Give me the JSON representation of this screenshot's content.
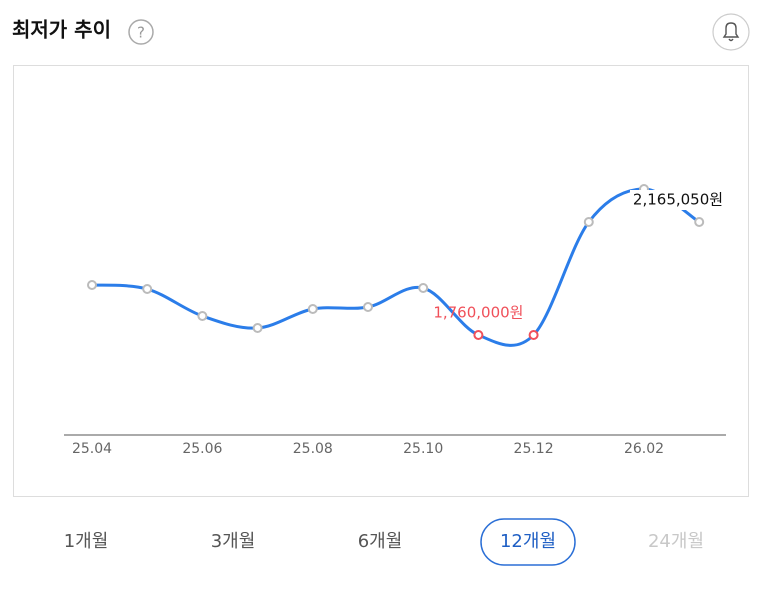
{
  "header": {
    "title": "최저가 추이",
    "help_icon": "?"
  },
  "chart_data": {
    "type": "line",
    "categories": [
      "25.04",
      null,
      "25.06",
      null,
      "25.08",
      null,
      "25.10",
      null,
      "25.12",
      null,
      "26.02",
      null
    ],
    "series": [
      {
        "color": "#2b7de9",
        "values": [
          1898700,
          1887600,
          1812700,
          1779400,
          1832100,
          1837700,
          1890400,
          1760000,
          1760000,
          2073500,
          2165050,
          2073500
        ],
        "value_labels": [
          null,
          null,
          null,
          null,
          null,
          null,
          null,
          "1,760,000원",
          null,
          null,
          "2,165,050원",
          null
        ]
      }
    ],
    "highlight_color": "#f0505a"
  },
  "periods": {
    "items": [
      "1개월",
      "3개월",
      "6개월",
      "12개월",
      "24개월"
    ],
    "selected_index": 3,
    "disabled_index": 4
  }
}
